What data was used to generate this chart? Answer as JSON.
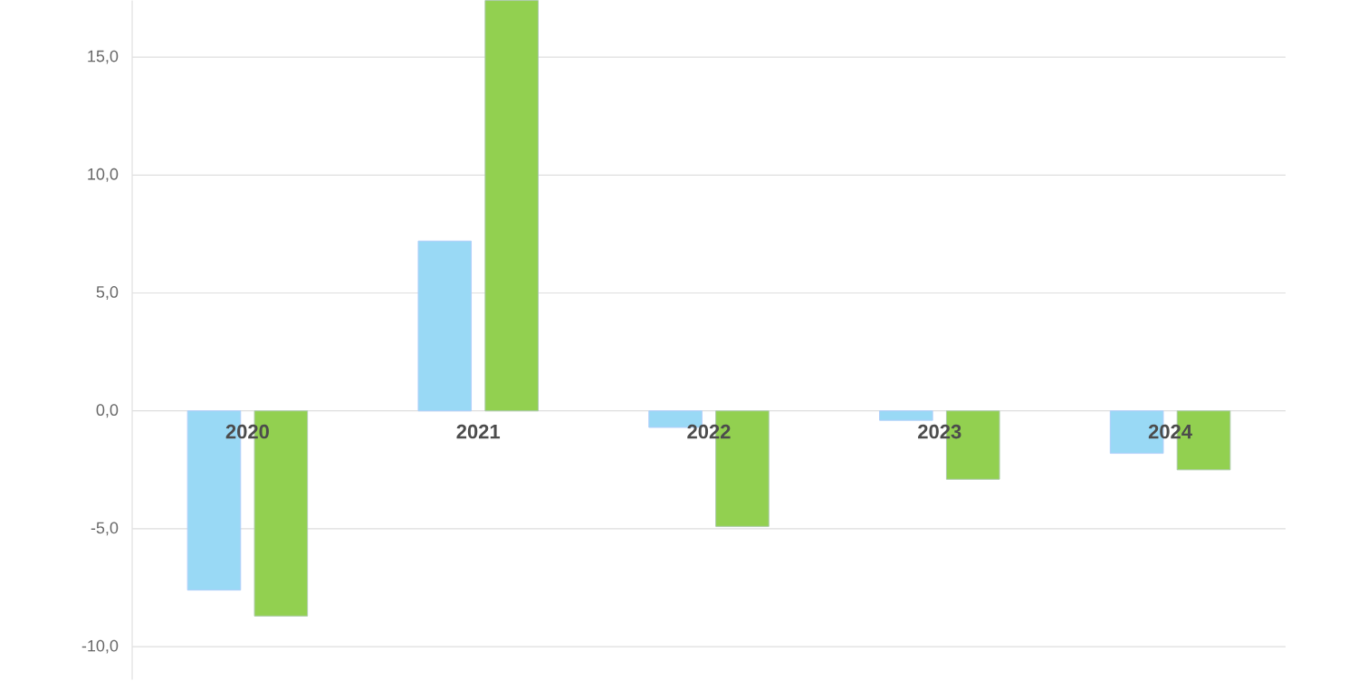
{
  "chart_data": {
    "type": "bar",
    "categories": [
      "2020",
      "2021",
      "2022",
      "2023",
      "2024"
    ],
    "series": [
      {
        "color": "#99d9f5",
        "values": [
          -7.6,
          7.2,
          -0.7,
          -0.4,
          -1.8
        ]
      },
      {
        "color": "#92d050",
        "values": [
          -8.7,
          17.4,
          -4.9,
          -2.9,
          -2.5
        ]
      }
    ],
    "ylim": [
      -11.4,
      17.4
    ],
    "yticks": [
      {
        "value": -10,
        "label": "-10,0"
      },
      {
        "value": -5,
        "label": "-5,0"
      },
      {
        "value": 0,
        "label": "0,0"
      },
      {
        "value": 5,
        "label": "5,0"
      },
      {
        "value": 10,
        "label": "10,0"
      },
      {
        "value": 15,
        "label": "15,0"
      }
    ],
    "grid": "y"
  }
}
